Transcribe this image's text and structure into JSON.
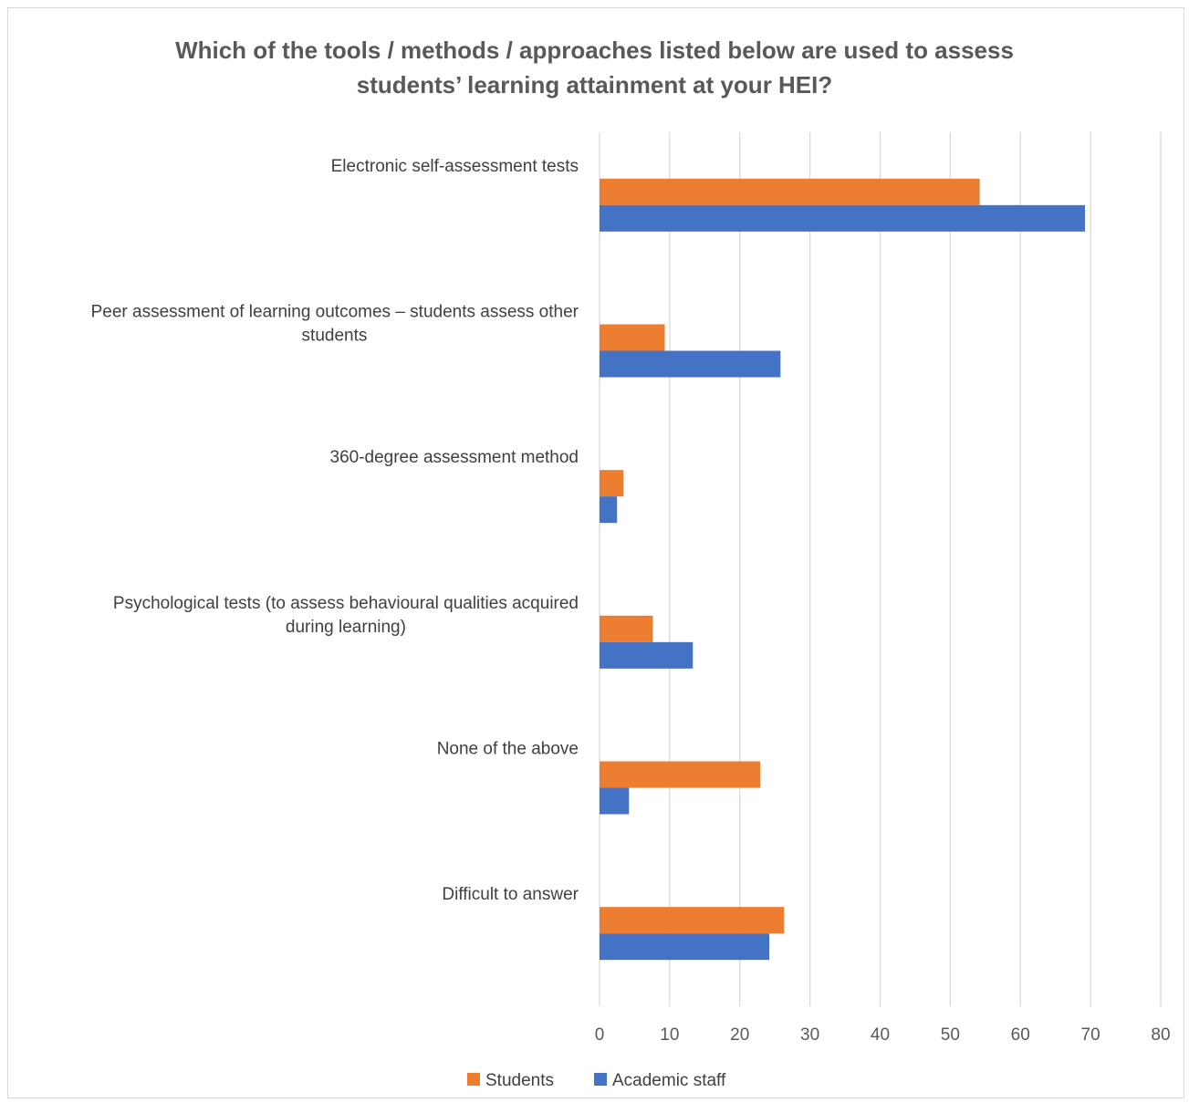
{
  "chart_data": {
    "type": "bar",
    "orientation": "horizontal",
    "title_lines": [
      "Which of the tools / methods / approaches listed below are used to assess",
      "students’ learning attainment at your HEI?"
    ],
    "categories": [
      [
        "Electronic self-assessment tests"
      ],
      [
        "Peer assessment of learning outcomes – students assess other",
        "students"
      ],
      [
        "360-degree assessment method"
      ],
      [
        "Psychological tests (to assess behavioural qualities acquired",
        "during learning)"
      ],
      [
        "None of the above"
      ],
      [
        "Difficult to answer"
      ]
    ],
    "series": [
      {
        "name": "Students",
        "color": "#ed7d31",
        "values": [
          54.2,
          9.3,
          3.4,
          7.6,
          22.9,
          26.3
        ]
      },
      {
        "name": "Academic staff",
        "color": "#4472c4",
        "values": [
          69.2,
          25.8,
          2.5,
          13.3,
          4.2,
          24.2
        ]
      }
    ],
    "xlim": [
      0,
      80
    ],
    "xticks": [
      "0",
      "10",
      "20",
      "30",
      "40",
      "50",
      "60",
      "70",
      "80"
    ],
    "grid": true,
    "legend_position": "bottom"
  }
}
